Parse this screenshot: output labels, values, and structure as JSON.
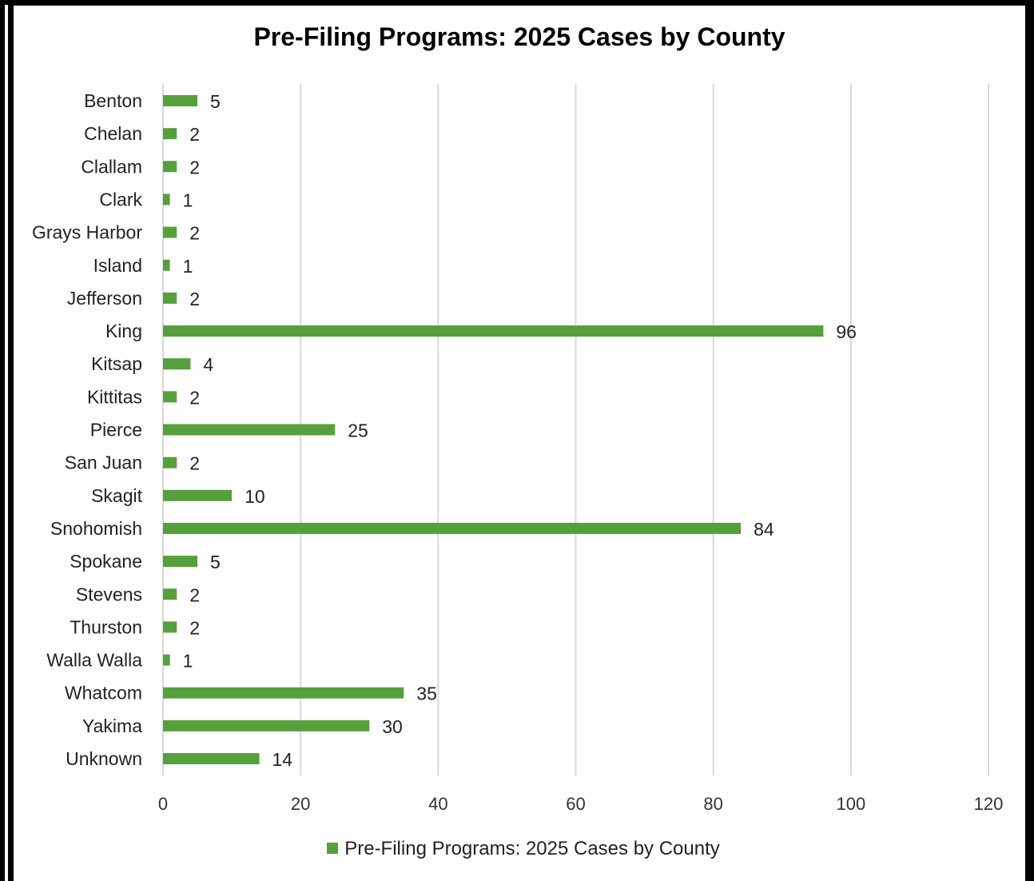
{
  "chart_data": {
    "type": "bar",
    "orientation": "horizontal",
    "title": "Pre-Filing Programs:  2025 Cases by County",
    "categories": [
      "Benton",
      "Chelan",
      "Clallam",
      "Clark",
      "Grays Harbor",
      "Island",
      "Jefferson",
      "King",
      "Kitsap",
      "Kittitas",
      "Pierce",
      "San Juan",
      "Skagit",
      "Snohomish",
      "Spokane",
      "Stevens",
      "Thurston",
      "Walla Walla",
      "Whatcom",
      "Yakima",
      "Unknown"
    ],
    "series": [
      {
        "name": "Pre-Filing Programs:  2025 Cases by County",
        "values": [
          5,
          2,
          2,
          1,
          2,
          1,
          2,
          96,
          4,
          2,
          25,
          2,
          10,
          84,
          5,
          2,
          2,
          1,
          35,
          30,
          14
        ]
      }
    ],
    "xlim": [
      0,
      120
    ],
    "xticks": [
      "0",
      "20",
      "40",
      "60",
      "80",
      "100",
      "120"
    ],
    "grid": true,
    "legend_position": "bottom",
    "bar_color": "#55A03C",
    "grid_color": "#D9D9D9"
  }
}
